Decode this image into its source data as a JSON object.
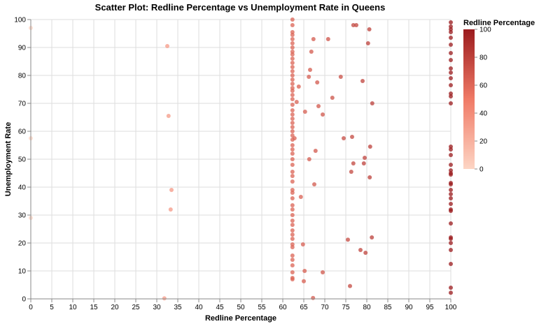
{
  "chart_data": {
    "type": "scatter",
    "title": "Scatter Plot: Redline Percentage vs Unemployment Rate in Queens",
    "xlabel": "Redline Percentage",
    "ylabel": "Unemployment Rate",
    "xlim": [
      0,
      100
    ],
    "ylim": [
      0,
      100
    ],
    "x_ticks": [
      0,
      5,
      10,
      15,
      20,
      25,
      30,
      35,
      40,
      45,
      50,
      55,
      60,
      65,
      70,
      75,
      80,
      85,
      90,
      95,
      100
    ],
    "y_ticks": [
      0,
      10,
      20,
      30,
      40,
      50,
      60,
      70,
      80,
      90,
      100
    ],
    "grid": true,
    "color_encoding": "Redline Percentage",
    "legend": {
      "title": "Redline Percentage",
      "placement": "right",
      "ticks": [
        0,
        20,
        40,
        60,
        80,
        100
      ],
      "color_low": "#fdd5c4",
      "color_mid": "#f07a66",
      "color_high": "#9b1b1e"
    },
    "points": [
      [
        0,
        97
      ],
      [
        0,
        57.5
      ],
      [
        0,
        29
      ],
      [
        32.5,
        90.5
      ],
      [
        32.8,
        65.5
      ],
      [
        33.5,
        39
      ],
      [
        33.3,
        32
      ],
      [
        31.8,
        0.2
      ],
      [
        62.3,
        100
      ],
      [
        62.3,
        98
      ],
      [
        62.3,
        95.5
      ],
      [
        62.3,
        94.5
      ],
      [
        62.3,
        93
      ],
      [
        62.3,
        91.5
      ],
      [
        62.3,
        90
      ],
      [
        62.3,
        88.5
      ],
      [
        62.3,
        87.5
      ],
      [
        62.3,
        86
      ],
      [
        62.3,
        84.5
      ],
      [
        62.3,
        83
      ],
      [
        62.3,
        81.5
      ],
      [
        62.3,
        80
      ],
      [
        62.3,
        78.5
      ],
      [
        62.3,
        77
      ],
      [
        62.3,
        75.5
      ],
      [
        62.3,
        74.5
      ],
      [
        62.3,
        73
      ],
      [
        62.3,
        71.5
      ],
      [
        62.3,
        69.5
      ],
      [
        62.3,
        67.5
      ],
      [
        62.3,
        66
      ],
      [
        62.3,
        64.5
      ],
      [
        62.3,
        63
      ],
      [
        62.3,
        61.5
      ],
      [
        62.3,
        60
      ],
      [
        62.3,
        58.5
      ],
      [
        62.3,
        57
      ],
      [
        62.3,
        55
      ],
      [
        62.3,
        53.5
      ],
      [
        62.3,
        52
      ],
      [
        62.3,
        50
      ],
      [
        62.3,
        48
      ],
      [
        62.3,
        45.5
      ],
      [
        62.3,
        44
      ],
      [
        62.3,
        42
      ],
      [
        62.3,
        39
      ],
      [
        62.3,
        38
      ],
      [
        62.3,
        36
      ],
      [
        62.3,
        33.5
      ],
      [
        62.3,
        32
      ],
      [
        62.3,
        30
      ],
      [
        62.3,
        28
      ],
      [
        62.3,
        26.5
      ],
      [
        62.3,
        24.5
      ],
      [
        62.3,
        23
      ],
      [
        62.3,
        21.5
      ],
      [
        62.3,
        19.5
      ],
      [
        62.3,
        18.5
      ],
      [
        62.3,
        15.5
      ],
      [
        62.3,
        14
      ],
      [
        62.3,
        12
      ],
      [
        62.3,
        9.5
      ],
      [
        62.3,
        7.5
      ],
      [
        62.3,
        7
      ],
      [
        62.8,
        57.5
      ],
      [
        63.3,
        70.5
      ],
      [
        63.8,
        76
      ],
      [
        64.3,
        36.5
      ],
      [
        64.8,
        19.5
      ],
      [
        65.3,
        67
      ],
      [
        65.2,
        10
      ],
      [
        65,
        6.3
      ],
      [
        66.2,
        79.5
      ],
      [
        66.5,
        82
      ],
      [
        66.8,
        88.5
      ],
      [
        66.3,
        50
      ],
      [
        67.3,
        93
      ],
      [
        67.5,
        41
      ],
      [
        67.8,
        53
      ],
      [
        67.2,
        0.3
      ],
      [
        68.2,
        77.5
      ],
      [
        68.5,
        69
      ],
      [
        69.5,
        66
      ],
      [
        69.5,
        9.5
      ],
      [
        70.8,
        93
      ],
      [
        71.8,
        72
      ],
      [
        73.8,
        79.5
      ],
      [
        74.5,
        57.5
      ],
      [
        75.5,
        21.2
      ],
      [
        76,
        4.6
      ],
      [
        76.3,
        45.5
      ],
      [
        76.5,
        58
      ],
      [
        76.8,
        48.5
      ],
      [
        76.8,
        98
      ],
      [
        77.5,
        98
      ],
      [
        78.5,
        17.5
      ],
      [
        79,
        78
      ],
      [
        79.3,
        48.5
      ],
      [
        79.5,
        50.5
      ],
      [
        79.7,
        16.5
      ],
      [
        80.3,
        91.5
      ],
      [
        80.6,
        96.5
      ],
      [
        80.7,
        43.5
      ],
      [
        80.8,
        54.5
      ],
      [
        81.2,
        22
      ],
      [
        81.3,
        70
      ],
      [
        100,
        99
      ],
      [
        100,
        97.5
      ],
      [
        100,
        96.5
      ],
      [
        100,
        95.5
      ],
      [
        100,
        93.5
      ],
      [
        100,
        91
      ],
      [
        100,
        88
      ],
      [
        100,
        85.5
      ],
      [
        100,
        82.5
      ],
      [
        100,
        81
      ],
      [
        100,
        79
      ],
      [
        100,
        76.5
      ],
      [
        100,
        73.5
      ],
      [
        100,
        72.5
      ],
      [
        100,
        70
      ],
      [
        100,
        54.5
      ],
      [
        100,
        53.5
      ],
      [
        100,
        51.5
      ],
      [
        100,
        48
      ],
      [
        100,
        46
      ],
      [
        100,
        45
      ],
      [
        100,
        44.5
      ],
      [
        100,
        41.5
      ],
      [
        100,
        41
      ],
      [
        100,
        39
      ],
      [
        100,
        37.5
      ],
      [
        100,
        36
      ],
      [
        100,
        34
      ],
      [
        100,
        32
      ],
      [
        100,
        31.5
      ],
      [
        100,
        27
      ],
      [
        100,
        22
      ],
      [
        100,
        21.5
      ],
      [
        100,
        20
      ],
      [
        100,
        17.5
      ],
      [
        100,
        12.5
      ],
      [
        100,
        4
      ],
      [
        100,
        2.2
      ]
    ]
  }
}
